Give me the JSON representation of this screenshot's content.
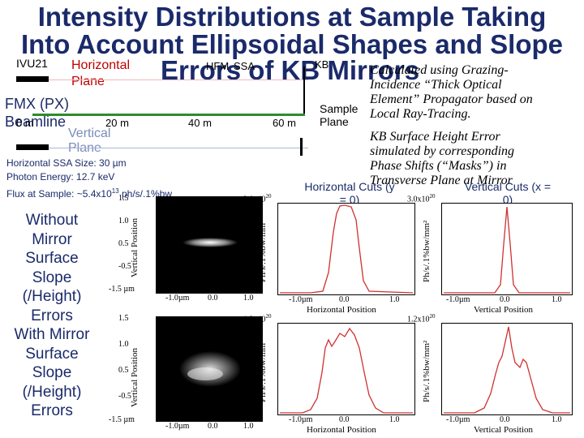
{
  "slide": {
    "title_line1": "Intensity Distributions at Sample Taking",
    "title_line2": "Into Account Ellipsoidal Shapes and Slope",
    "title_line3": "Errors of KB Mirrors"
  },
  "layout_labels": {
    "ivu": "IVU21",
    "horizontal_plane_1": "Horizontal",
    "horizontal_plane_2": "Plane",
    "hfm": "HFM",
    "ssa": "SSA",
    "kb": "KB",
    "beamline_1": "FMX (PX)",
    "beamline_2": "Beamline",
    "vertical_1": "Vertical",
    "vertical_2": "Plane",
    "dist_0": "0 m",
    "dist_20": "20 m",
    "dist_40": "40 m",
    "dist_60": "60 m",
    "sample_1": "Sample",
    "sample_2": "Plane"
  },
  "notes": {
    "note1_l1": "Calculated using Grazing-",
    "note1_l2": "Incidence “Thick Optical",
    "note1_l3": "Element” Propagator based on",
    "note1_l4": "Local Ray-Tracing.",
    "note2_l1": "KB Surface Height Error",
    "note2_l2": "simulated by corresponding",
    "note2_l3": "Phase Shifts (“Masks”) in",
    "note2_l4": "Transverse Plane at Mirror"
  },
  "params": {
    "ssa_size": "Horizontal SSA Size: 30 µm",
    "photon_energy": "Photon Energy: 12.7 keV",
    "flux_prefix": "Flux at Sample: ~5.4x10",
    "flux_exp": "13",
    "flux_suffix": " ph/s/.1%bw"
  },
  "side_text": {
    "without_1": "Without",
    "without_2": "Mirror",
    "without_3": "Surface",
    "without_4": "Slope",
    "without_5": "(/Height)",
    "without_6": "Errors",
    "with_1": "With Mirror",
    "with_2": "Surface",
    "with_3": "Slope",
    "with_4": "(/Height)",
    "with_5": "Errors"
  },
  "cuts": {
    "horizontal_1": "Horizontal Cuts (y",
    "horizontal_2": "= 0)",
    "vertical_1": "Vertical Cuts (x =",
    "vertical_2": "0)"
  },
  "plots": {
    "intensity_ylabel": "Vertical Position",
    "intensity_xlabel": "Horizontal Position",
    "ph_ylabel": "Ph/s/.1%bw/mm²",
    "hcut_xlabel": "Horizontal Position",
    "vcut_xlabel": "Vertical Position",
    "yticks_map": [
      "1.5",
      "1.0",
      "0.5",
      "0",
      "-0.5",
      "-1.0",
      "-1.5 µm"
    ],
    "xticks_map": [
      "-1.0µm",
      "0.0",
      "1.0"
    ],
    "xticks_cut": [
      "-1.0µm",
      "0.0",
      "1.0"
    ],
    "top_scale": "3.0x10",
    "top_scale_exp": "20",
    "top_yticks": [
      "3.0",
      "2.5",
      "2.0",
      "1.5",
      "1.0",
      "0.5"
    ],
    "bot_scale": "1.2x10",
    "bot_scale_exp": "20",
    "bot_yticks": [
      "1.2",
      "1.0",
      "0.8",
      "0.6",
      "0.4",
      "0.2"
    ]
  },
  "colors": {
    "title": "#1a2a6a",
    "accent_red": "#c00000",
    "beam_green": "#2e8b2e"
  }
}
